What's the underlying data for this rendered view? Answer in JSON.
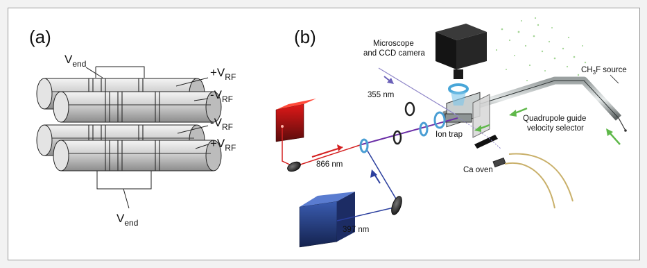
{
  "panel_a": {
    "label": "(a)",
    "v_end_top": {
      "main": "V",
      "sub": "end"
    },
    "v_end_bottom": {
      "main": "V",
      "sub": "end"
    },
    "rf_labels": [
      {
        "main": "+V",
        "sub": "RF"
      },
      {
        "main": "-V",
        "sub": "RF"
      },
      {
        "main": "-V",
        "sub": "RF"
      },
      {
        "main": "+V",
        "sub": "RF"
      }
    ]
  },
  "panel_b": {
    "label": "(b)",
    "microscope_line1": "Microscope",
    "microscope_line2": "and CCD camera",
    "wl_355": "355 nm",
    "wl_866": "866 nm",
    "wl_397": "397 nm",
    "ion_trap": "Ion trap",
    "ca_oven": "Ca oven",
    "quad_line1": "Quadrupole guide",
    "quad_line2": "velocity selector",
    "source": {
      "pre": "CH",
      "sub": "3",
      "post": "F source"
    }
  },
  "colors": {
    "red_laser": "#d42020",
    "blue_laser": "#2b3f9e",
    "uv_laser": "#8f86c8",
    "green_arrow": "#5fb84a",
    "ccd_camera": "#1a1a1a",
    "blue_box": "#2f4fa0"
  }
}
